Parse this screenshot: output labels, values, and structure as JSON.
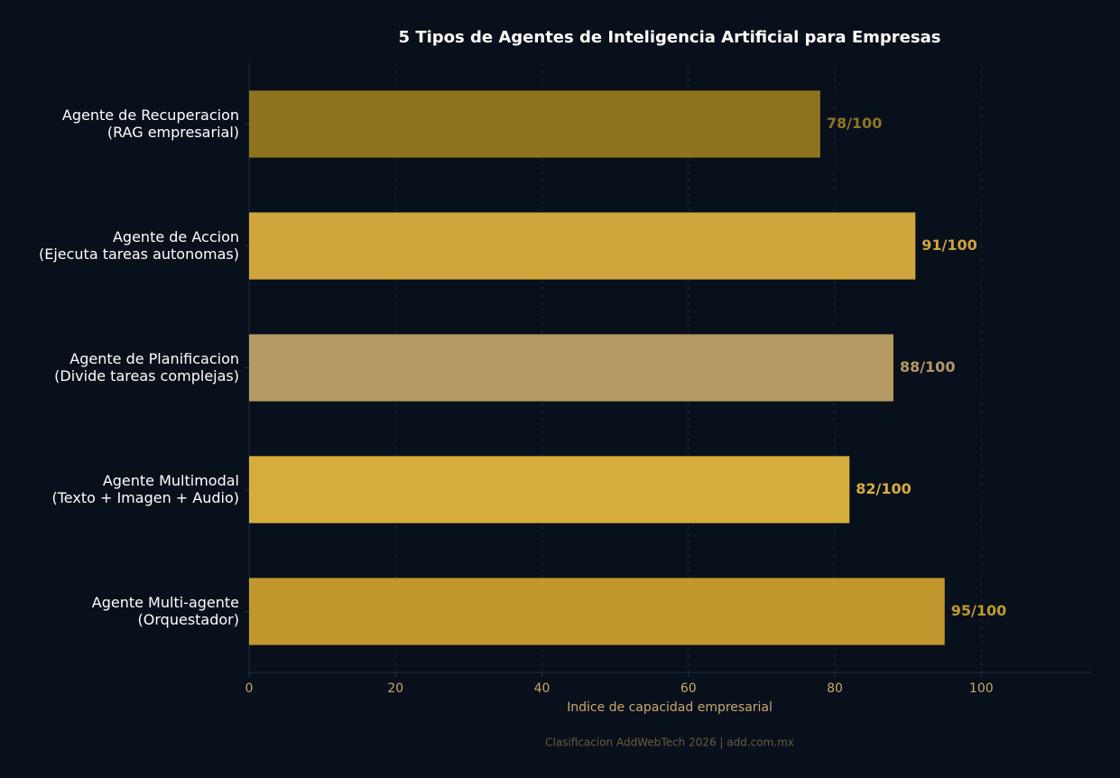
{
  "chart_data": {
    "type": "barh",
    "title": "5 Tipos de Agentes de Inteligencia Artificial para Empresas",
    "xlabel": "Indice de capacidad empresarial",
    "footnote": "Clasificacion AddWebTech 2026 | add.com.mx",
    "categories": [
      "Agente de Recuperacion\n(RAG empresarial)",
      "Agente de Accion\n(Ejecuta tareas autonomas)",
      "Agente de Planificacion\n(Divide tareas complejas)",
      "Agente Multimodal\n(Texto + Imagen + Audio)",
      "Agente Multi-agente\n(Orquestador)"
    ],
    "values": [
      78,
      91,
      88,
      82,
      95
    ],
    "value_labels": [
      "78/100",
      "91/100",
      "88/100",
      "82/100",
      "95/100"
    ],
    "colors": [
      "#8f7420",
      "#d0a53c",
      "#b59a64",
      "#d6ad3c",
      "#c0982d"
    ],
    "xlim": [
      0,
      115
    ],
    "xticks": [
      0,
      20,
      40,
      60,
      80,
      100
    ],
    "grid": true
  }
}
